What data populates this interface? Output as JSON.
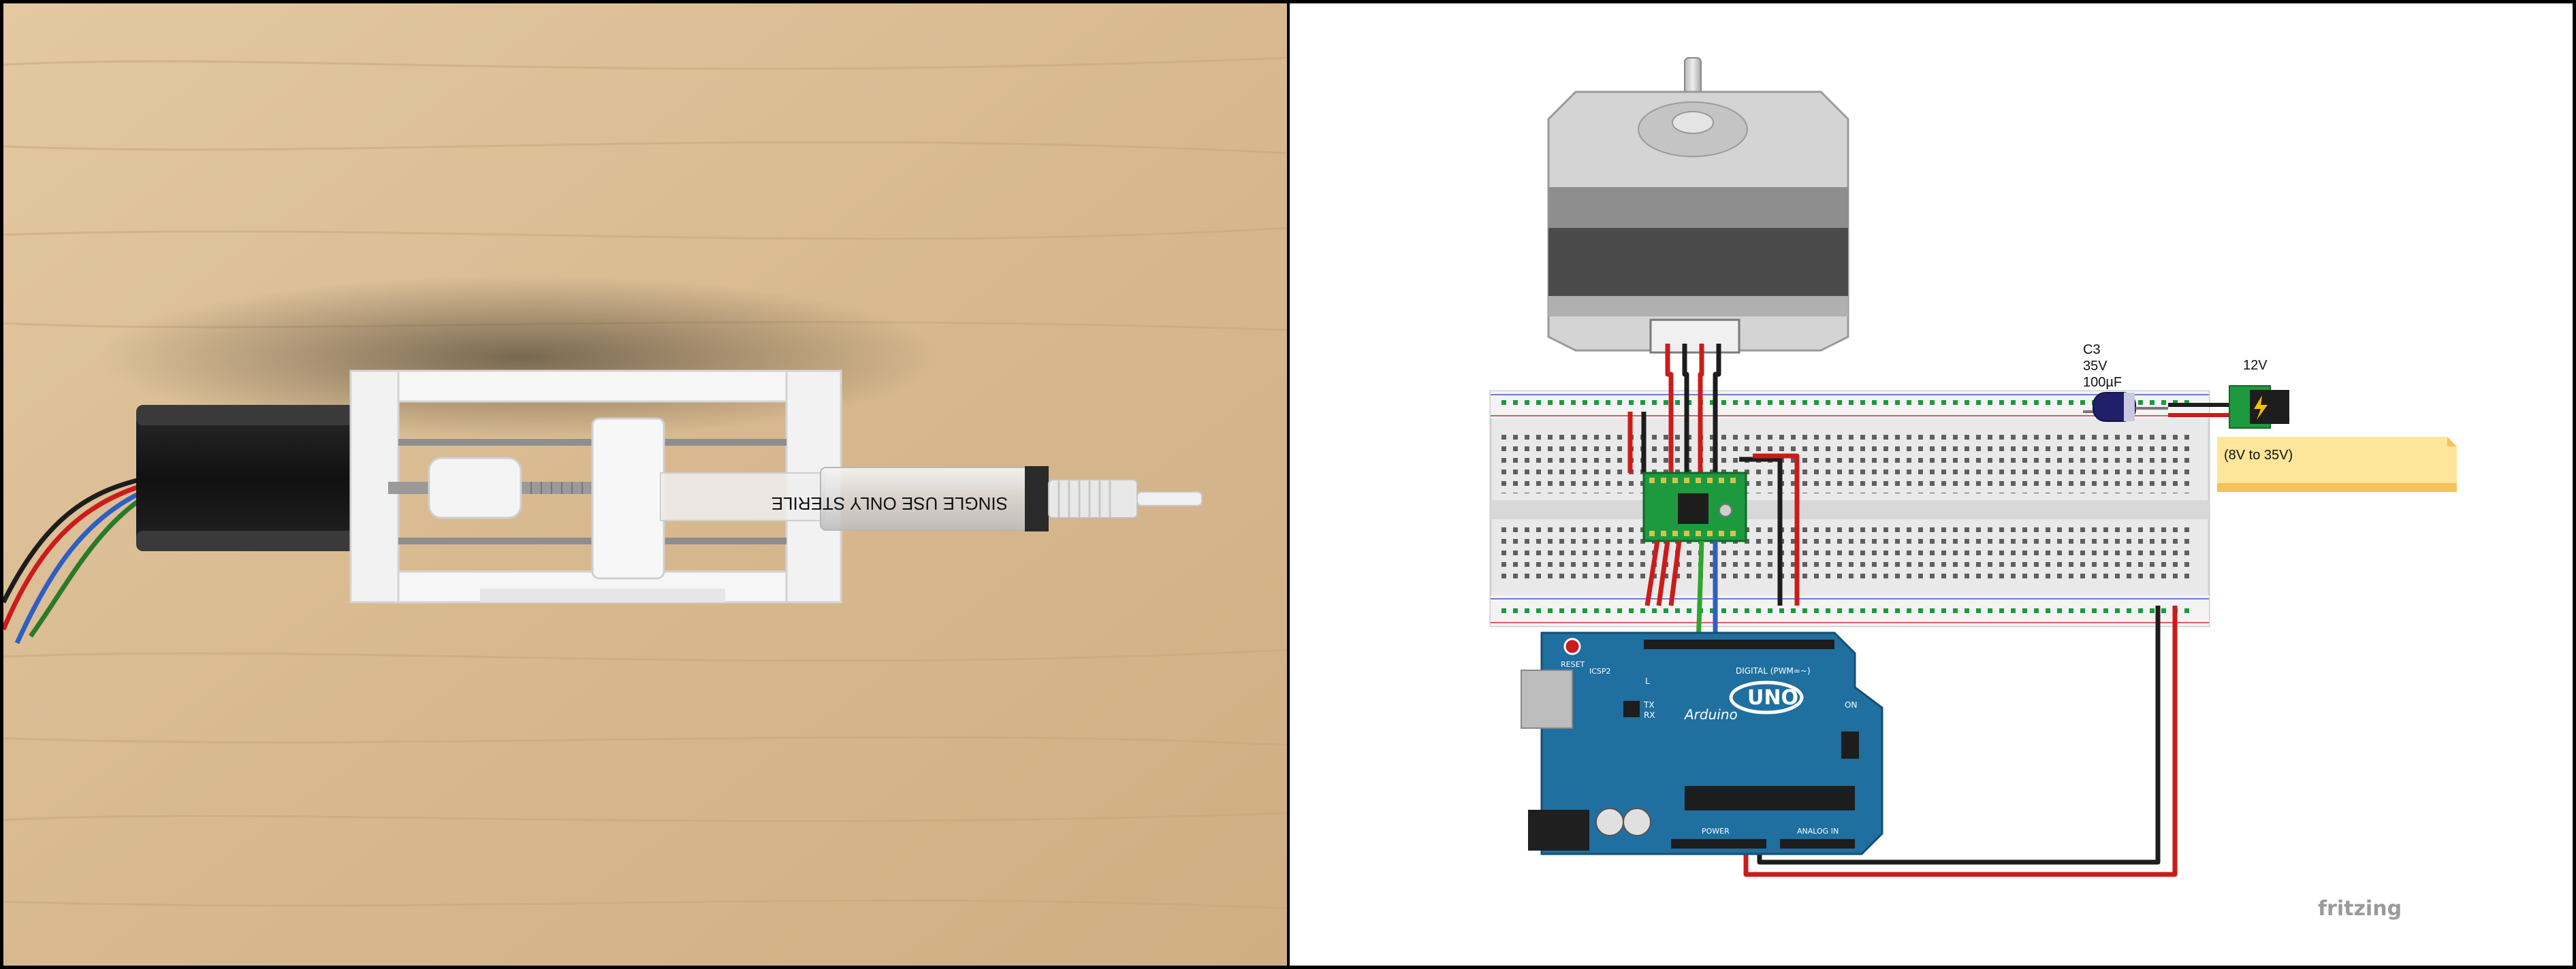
{
  "photo": {
    "syringe_scale_text": "SINGLE USE ONLY  STERILE"
  },
  "diagram": {
    "capacitor": {
      "name": "C3",
      "voltage": "35V",
      "capacitance": "100µF"
    },
    "power_jack": {
      "label": "12V"
    },
    "voltage_note": "(8V to 35V)",
    "arduino": {
      "brand": "Arduino",
      "model": "UNO",
      "reset_label": "RESET",
      "icsp_label": "ICSP2",
      "digital_label": "DIGITAL (PWM=~)",
      "power_label": "POWER",
      "analog_label": "ANALOG IN",
      "tx_label": "TX",
      "rx_label": "RX",
      "l_label": "L",
      "on_label": "ON"
    },
    "software_watermark": "fritzing"
  },
  "colors": {
    "wire_red": "#cc1b1b",
    "wire_black": "#1d1d1d",
    "wire_blue": "#2d5fc4",
    "wire_green": "#2fa52f",
    "arduino_blue": "#1f6fa0",
    "driver_green": "#1e9a3e",
    "note_yellow": "#fde59a"
  }
}
